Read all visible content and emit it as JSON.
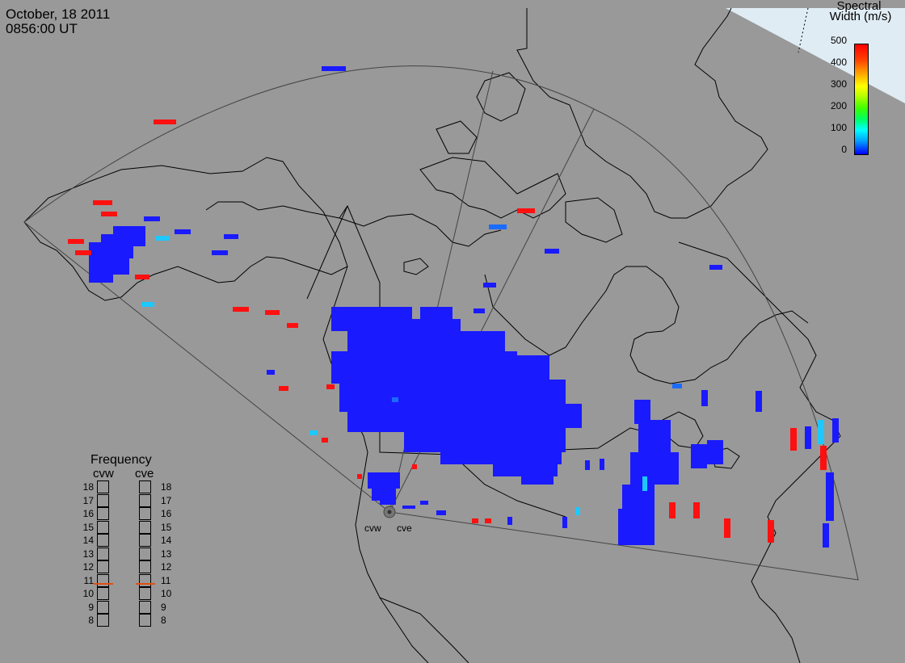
{
  "title": {
    "date": "October, 18 2011",
    "time": "0856:00 UT"
  },
  "colorbar": {
    "title_line1": "Spectral",
    "title_line2": "Width (m/s)",
    "ticks": [
      "500",
      "400",
      "300",
      "200",
      "100",
      "0"
    ],
    "range": [
      0,
      500
    ],
    "colors": {
      "low": "#0000ff",
      "mid": "#00ff60",
      "high": "#ff0000"
    }
  },
  "frequency_panel": {
    "title": "Frequency",
    "radars": [
      {
        "code": "cvw",
        "frequency_mhz": 10.8
      },
      {
        "code": "cve",
        "frequency_mhz": 10.8
      }
    ],
    "scale": [
      "18",
      "17",
      "16",
      "15",
      "14",
      "13",
      "12",
      "11",
      "10",
      "9",
      "8"
    ]
  },
  "sites": {
    "west": "cvw",
    "east": "cve"
  },
  "map": {
    "background_color": "#999999",
    "ocean_color": "#999999",
    "cell_colors": {
      "blue": "#1a1aff",
      "light_blue": "#1ec8ff",
      "mid_blue": "#1a6cff",
      "red": "#ff1010"
    }
  }
}
